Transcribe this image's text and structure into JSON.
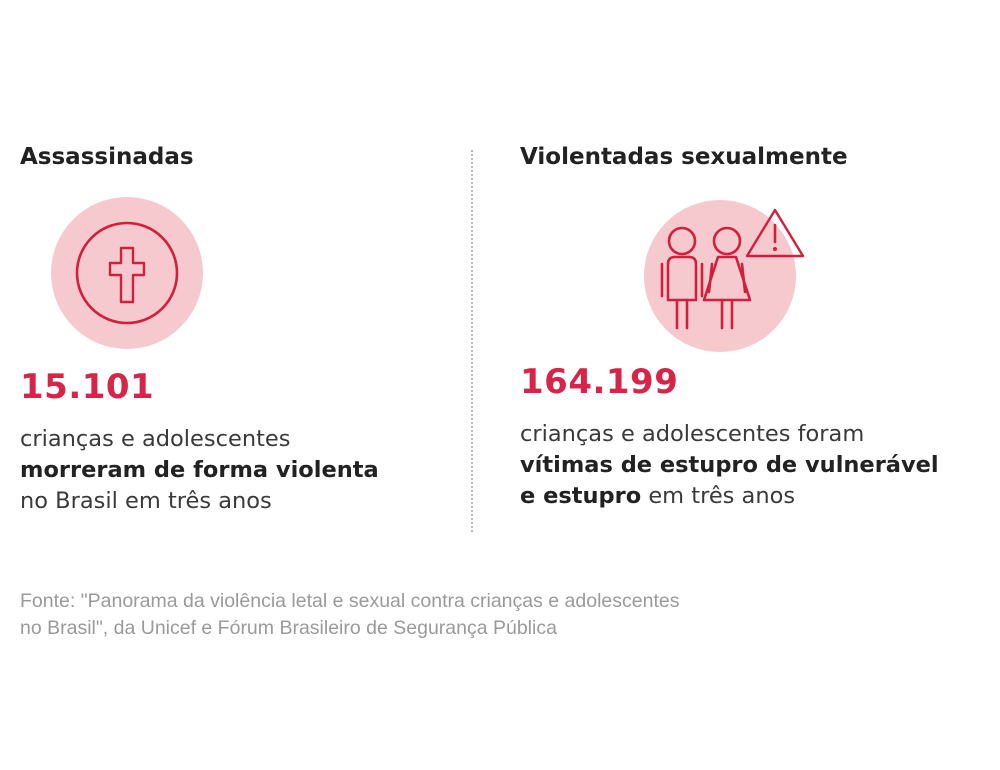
{
  "left": {
    "heading": "Assassinadas",
    "icon": "cross-icon",
    "number": "15.101",
    "line1": "crianças e adolescentes",
    "line2_strong": "morreram de forma violenta",
    "line3": "no Brasil em três anos"
  },
  "right": {
    "heading": "Violentadas sexualmente",
    "icon": "children-warning-icon",
    "number": "164.199",
    "line1": "crianças e adolescentes foram",
    "line2_strong": "vítimas de estupro de vulnerável",
    "line3_strong": "e estupro",
    "line3_rest": " em três anos"
  },
  "source": {
    "line1": "Fonte: \"Panorama da violência letal e sexual contra crianças e adolescentes",
    "line2": "no Brasil\", da Unicef e Fórum Brasileiro de Segurança Pública"
  },
  "colors": {
    "accent": "#d7254a",
    "circle_fill": "#f6c9cf",
    "icon_stroke": "#d21f3c",
    "source_text": "#9a9a9a"
  }
}
